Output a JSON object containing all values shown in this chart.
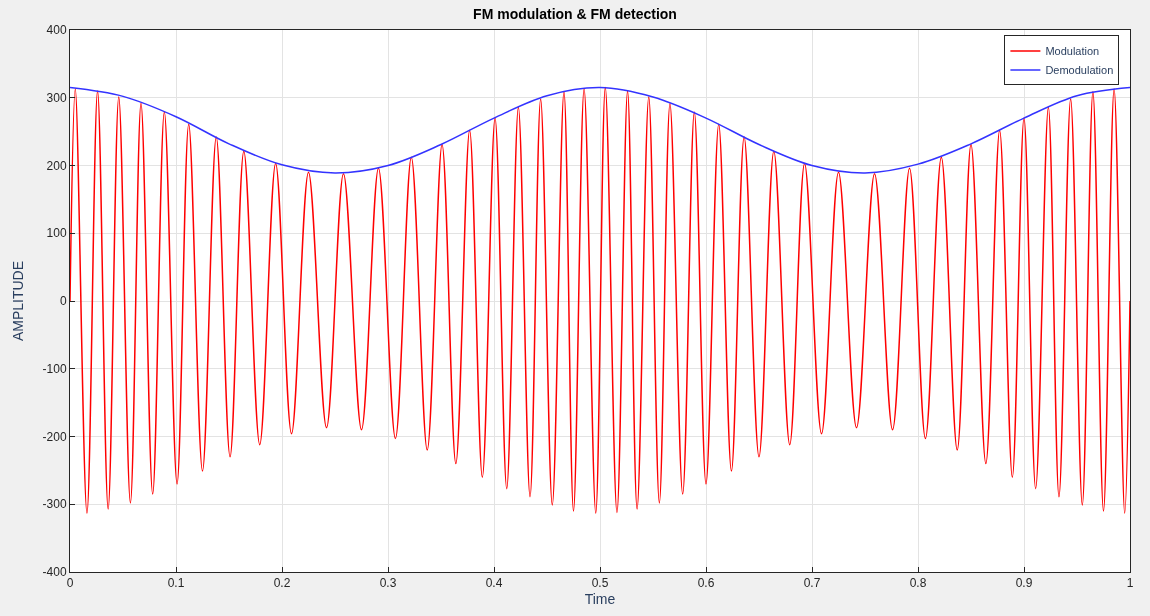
{
  "chart_data": {
    "type": "line",
    "title": "FM modulation & FM detection",
    "xlabel": "Time",
    "ylabel": "AMPLITUDE",
    "xlim": [
      0,
      1
    ],
    "xticks": [
      0,
      0.1,
      0.2,
      0.3,
      0.4,
      0.5,
      0.6,
      0.7,
      0.8,
      0.9,
      1
    ],
    "ylim": [
      -400,
      400
    ],
    "yticks": [
      -400,
      -300,
      -200,
      -100,
      0,
      100,
      200,
      300,
      400
    ],
    "grid": true,
    "legend": "top right",
    "marker": "none",
    "line_style": "solid",
    "series": [
      {
        "name": "Modulation",
        "color": "#ff0000",
        "x": [
          0,
          0.005,
          0.016,
          0.026,
          0.036,
          0.046,
          0.057,
          0.067,
          0.078,
          0.089,
          0.101,
          0.112,
          0.125,
          0.138,
          0.151,
          0.164,
          0.179,
          0.194,
          0.209,
          0.225,
          0.242,
          0.258,
          0.275,
          0.291,
          0.307,
          0.322,
          0.337,
          0.351,
          0.364,
          0.377,
          0.389,
          0.401,
          0.412,
          0.423,
          0.434,
          0.444,
          0.455,
          0.466,
          0.475,
          0.485,
          0.496,
          0.505,
          0.516,
          0.526,
          0.535,
          0.546,
          0.556,
          0.566,
          0.578,
          0.589,
          0.6,
          0.612,
          0.624,
          0.636,
          0.65,
          0.664,
          0.679,
          0.693,
          0.709,
          0.725,
          0.742,
          0.759,
          0.776,
          0.792,
          0.807,
          0.822,
          0.837,
          0.85,
          0.864,
          0.877,
          0.889,
          0.9,
          0.911,
          0.923,
          0.933,
          0.944,
          0.955,
          0.965,
          0.975,
          0.985,
          0.995,
          1
        ],
        "values": [
          0,
          313,
          -313,
          310,
          -307,
          301,
          -298,
          292,
          -285,
          279,
          -270,
          261,
          -251,
          242,
          -230,
          221,
          -212,
          203,
          -196,
          190,
          -187,
          188,
          -190,
          196,
          -203,
          212,
          -220,
          231,
          -240,
          252,
          -260,
          270,
          -277,
          286,
          -289,
          298,
          -301,
          309,
          -310,
          313,
          -313,
          315,
          -312,
          310,
          -307,
          301,
          -298,
          291,
          -285,
          279,
          -270,
          261,
          -251,
          242,
          -230,
          221,
          -212,
          203,
          -196,
          190,
          -187,
          188,
          -190,
          196,
          -203,
          212,
          -220,
          231,
          -240,
          252,
          -260,
          270,
          -277,
          286,
          -289,
          298,
          -301,
          309,
          -310,
          313,
          -313,
          0
        ]
      },
      {
        "name": "Demodulation",
        "color": "#3333ff",
        "x": [
          0,
          0.05,
          0.1,
          0.15,
          0.2,
          0.25,
          0.3,
          0.35,
          0.4,
          0.45,
          0.5,
          0.55,
          0.6,
          0.65,
          0.7,
          0.75,
          0.8,
          0.85,
          0.9,
          0.95,
          1
        ],
        "values": [
          315,
          302,
          272,
          232,
          201,
          189,
          200,
          231,
          270,
          303,
          315,
          301,
          270,
          231,
          200,
          189,
          202,
          232,
          270,
          303,
          315
        ]
      }
    ]
  }
}
